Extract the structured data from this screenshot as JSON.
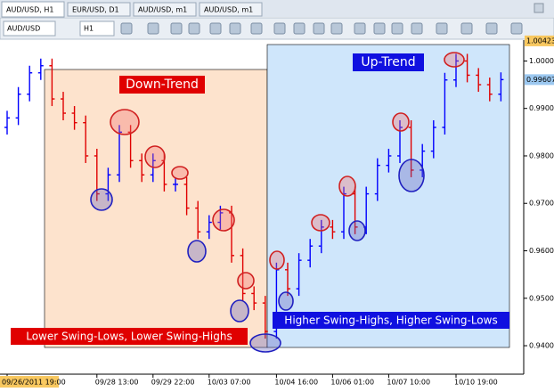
{
  "tabs": [
    "AUD/USD, H1",
    "EUR/USD, D1",
    "AUD/USD, m1",
    "AUD/USD, m1"
  ],
  "toolbar": {
    "symbol": "AUD/USD",
    "timeframe": "H1"
  },
  "chart_data": {
    "type": "ohlc",
    "x": [
      "09/26/2011 19:00",
      null,
      null,
      null,
      null,
      null,
      null,
      null,
      "09/28 13:00",
      null,
      null,
      null,
      null,
      "09/29 22:00",
      null,
      null,
      null,
      null,
      "10/03 07:00",
      null,
      null,
      null,
      null,
      null,
      "10/04 16:00",
      null,
      null,
      null,
      null,
      "10/06 01:00",
      null,
      null,
      null,
      null,
      "10/07 10:00",
      null,
      null,
      null,
      null,
      null,
      "10/10 19:00",
      null,
      null,
      null,
      null
    ],
    "open": [
      0.986,
      0.988,
      0.993,
      0.9975,
      0.999,
      0.992,
      0.989,
      0.987,
      0.98,
      0.972,
      0.976,
      0.985,
      0.979,
      0.976,
      0.979,
      0.974,
      0.974,
      0.969,
      0.964,
      0.966,
      0.968,
      0.959,
      0.951,
      0.949,
      0.943,
      0.956,
      0.952,
      0.958,
      0.961,
      0.965,
      0.964,
      0.972,
      0.965,
      0.972,
      0.978,
      0.98,
      0.986,
      0.977,
      0.981,
      0.986,
      0.996,
      1.0,
      0.997,
      0.995,
      0.993
    ],
    "high": [
      0.9895,
      0.9945,
      0.999,
      1.0005,
      1.0005,
      0.9935,
      0.9905,
      0.9885,
      0.9815,
      0.9775,
      0.9865,
      0.9865,
      0.9805,
      0.9805,
      0.9805,
      0.9755,
      0.9755,
      0.9705,
      0.9675,
      0.9695,
      0.9695,
      0.9605,
      0.9525,
      0.9505,
      0.9575,
      0.9575,
      0.9595,
      0.9625,
      0.9665,
      0.9665,
      0.9735,
      0.9735,
      0.9735,
      0.9795,
      0.9815,
      0.9875,
      0.9875,
      0.9825,
      0.9875,
      0.9975,
      1.0015,
      1.0015,
      0.9985,
      0.9965,
      0.9976
    ],
    "low": [
      0.9845,
      0.9865,
      0.9915,
      0.996,
      0.9905,
      0.9875,
      0.9855,
      0.9785,
      0.9705,
      0.9705,
      0.9745,
      0.9775,
      0.9745,
      0.9745,
      0.9725,
      0.9725,
      0.9675,
      0.9625,
      0.9625,
      0.9645,
      0.9575,
      0.9495,
      0.9475,
      0.9415,
      0.9415,
      0.9505,
      0.9505,
      0.9565,
      0.9595,
      0.9625,
      0.9625,
      0.9635,
      0.9635,
      0.9705,
      0.9765,
      0.9785,
      0.9755,
      0.9755,
      0.9795,
      0.9845,
      0.9945,
      0.9955,
      0.9935,
      0.9915,
      0.9915
    ],
    "close": [
      0.988,
      0.993,
      0.9975,
      0.999,
      0.992,
      0.989,
      0.987,
      0.98,
      0.972,
      0.976,
      0.985,
      0.979,
      0.976,
      0.979,
      0.974,
      0.974,
      0.969,
      0.964,
      0.966,
      0.968,
      0.959,
      0.951,
      0.949,
      0.943,
      0.956,
      0.952,
      0.958,
      0.961,
      0.965,
      0.964,
      0.972,
      0.965,
      0.972,
      0.978,
      0.98,
      0.986,
      0.977,
      0.981,
      0.986,
      0.996,
      1.0,
      0.997,
      0.995,
      0.993,
      0.99607
    ],
    "up_color": "#0000ff",
    "down_color": "#e00000",
    "ylim": [
      0.934,
      1.0044
    ],
    "yticks": [
      {
        "value": 1.0,
        "label": "1.0000"
      },
      {
        "value": 0.99,
        "label": "0.9900"
      },
      {
        "value": 0.98,
        "label": "0.9800"
      },
      {
        "value": 0.97,
        "label": "0.9700"
      },
      {
        "value": 0.96,
        "label": "0.9600"
      },
      {
        "value": 0.95,
        "label": "0.9500"
      },
      {
        "value": 0.94,
        "label": "0.9400"
      }
    ],
    "max_price": 1.00423,
    "current_price": 0.99607,
    "annotations": {
      "down_trend": "Down-Trend",
      "up_trend": "Up-Trend",
      "down_note": "Lower Swing-Lows, Lower Swing-Highs",
      "up_note": "Higher Swing-Highs, Higher Swing-Lows"
    }
  }
}
